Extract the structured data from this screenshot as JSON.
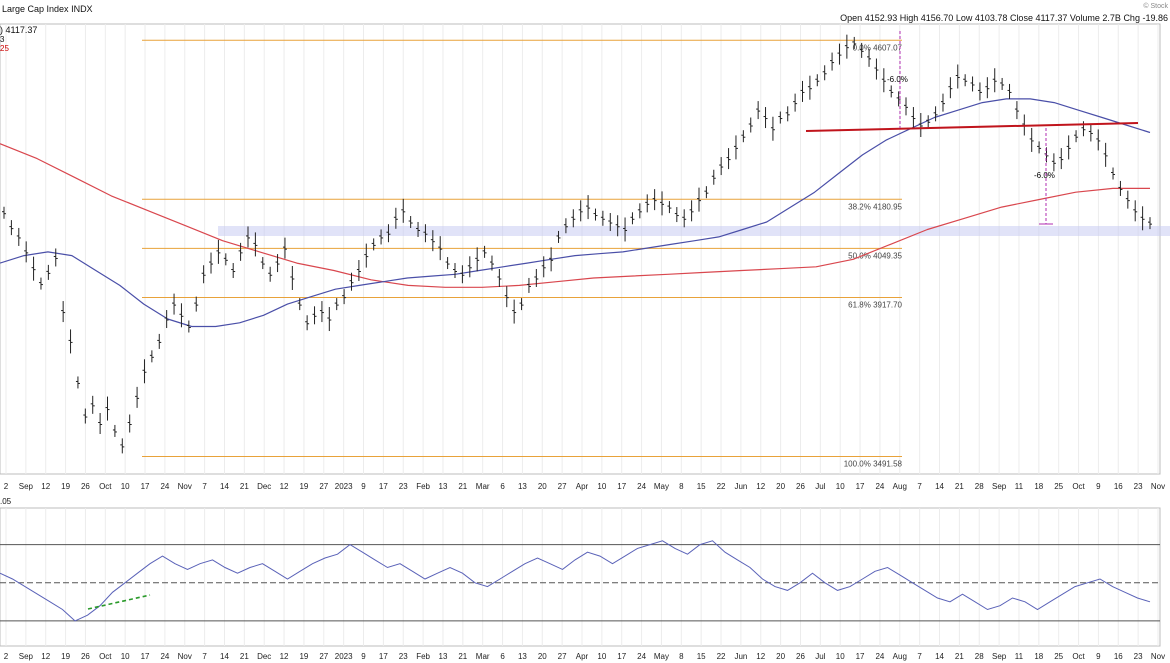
{
  "header": {
    "title": "Large Cap Index",
    "exchange": "INDX",
    "last_value": ") 4117.37",
    "legend_small_1": "3",
    "legend_small_2": "25",
    "watermark": "© Stock",
    "ohlc": {
      "open_label": "Open",
      "open": "4152.93",
      "high_label": "High",
      "high": "4156.70",
      "low_label": "Low",
      "low": "4103.78",
      "close_label": "Close",
      "close": "4117.37",
      "volume_label": "Volume",
      "volume": "2.7B",
      "chg_label": "Chg",
      "chg": "-19.86"
    }
  },
  "indicator": {
    "label": ".05"
  },
  "chart_data": {
    "type": "line",
    "ylim": [
      3450,
      4640
    ],
    "fib_levels": [
      {
        "label": "0.0% 4607.07",
        "value": 4607.07
      },
      {
        "label": "38.2% 4180.95",
        "value": 4180.95
      },
      {
        "label": "50.0% 4049.35",
        "value": 4049.35
      },
      {
        "label": "61.8% 3917.70",
        "value": 3917.7
      },
      {
        "label": "100.0% 3491.58",
        "value": 3491.58
      }
    ],
    "annotations": [
      {
        "label": "-6.0%",
        "from": 4607,
        "to": 4330
      },
      {
        "label": "-6.0%",
        "from": 4330,
        "to": 4050
      }
    ],
    "xaxis_ticks": [
      "2",
      "Sep",
      "12",
      "19",
      "26",
      "Oct",
      "10",
      "17",
      "24",
      "Nov",
      "7",
      "14",
      "21",
      "Dec",
      "12",
      "19",
      "27",
      "2023",
      "9",
      "17",
      "23",
      "Feb",
      "13",
      "21",
      "Mar",
      "6",
      "13",
      "20",
      "27",
      "Apr",
      "10",
      "17",
      "24",
      "May",
      "8",
      "15",
      "22",
      "Jun",
      "12",
      "20",
      "26",
      "Jul",
      "10",
      "17",
      "24",
      "Aug",
      "7",
      "14",
      "21",
      "28",
      "Sep",
      "11",
      "18",
      "25",
      "Oct",
      "9",
      "16",
      "23",
      "Nov"
    ],
    "price_series": [
      {
        "name": "",
        "values": [
          4145,
          4105,
          4080,
          4040,
          3995,
          3955,
          3985,
          4025,
          3880,
          3800,
          3690,
          3600,
          3630,
          3580,
          3620,
          3560,
          3520,
          3580,
          3650,
          3720,
          3760,
          3800,
          3860,
          3900,
          3870,
          3840,
          3900,
          3980,
          4010,
          4040,
          4020,
          3990,
          4040,
          4080,
          4060,
          4010,
          3980,
          4010,
          4050,
          3970,
          3900,
          3850,
          3870,
          3880,
          3860,
          3900,
          3920,
          3960,
          3990,
          4030,
          4060,
          4080,
          4090,
          4130,
          4150,
          4120,
          4100,
          4090,
          4070,
          4050,
          4010,
          3990,
          3980,
          4000,
          4020,
          4040,
          4010,
          3970,
          3920,
          3880,
          3900,
          3950,
          3970,
          4000,
          4020,
          4080,
          4110,
          4130,
          4150,
          4160,
          4140,
          4130,
          4120,
          4110,
          4100,
          4130,
          4150,
          4170,
          4180,
          4170,
          4160,
          4140,
          4130,
          4150,
          4180,
          4200,
          4240,
          4270,
          4290,
          4320,
          4350,
          4380,
          4420,
          4400,
          4370,
          4400,
          4410,
          4440,
          4470,
          4480,
          4500,
          4520,
          4550,
          4570,
          4590,
          4600,
          4580,
          4560,
          4530,
          4500,
          4470,
          4450,
          4430,
          4400,
          4380,
          4390,
          4410,
          4440,
          4480,
          4510,
          4500,
          4490,
          4470,
          4480,
          4500,
          4490,
          4470,
          4420,
          4380,
          4340,
          4320,
          4300,
          4280,
          4290,
          4320,
          4350,
          4370,
          4360,
          4340,
          4300,
          4250,
          4210,
          4180,
          4150,
          4130,
          4117
        ]
      },
      {
        "name": "",
        "values": [
          4010,
          4030,
          4040,
          4030,
          3990,
          3950,
          3900,
          3860,
          3840,
          3840,
          3850,
          3870,
          3900,
          3920,
          3940,
          3950,
          3960,
          3970,
          3975,
          3980,
          3990,
          4000,
          4010,
          4020,
          4030,
          4035,
          4040,
          4050,
          4060,
          4070,
          4080,
          4100,
          4120,
          4160,
          4200,
          4250,
          4300,
          4340,
          4370,
          4400,
          4420,
          4440,
          4450,
          4450,
          4440,
          4420,
          4400,
          4380,
          4360
        ]
      },
      {
        "name": "",
        "values": [
          4330,
          4290,
          4240,
          4190,
          4150,
          4110,
          4070,
          4040,
          4010,
          3990,
          3965,
          3950,
          3945,
          3945,
          3950,
          3960,
          3970,
          3975,
          3980,
          3985,
          3990,
          3995,
          4000,
          4020,
          4060,
          4100,
          4130,
          4160,
          4180,
          4200,
          4210,
          4210
        ]
      }
    ],
    "rsi_series": {
      "name": "",
      "values": [
        55,
        52,
        48,
        44,
        40,
        36,
        30,
        33,
        38,
        45,
        50,
        55,
        60,
        64,
        60,
        57,
        60,
        62,
        58,
        55,
        58,
        60,
        56,
        52,
        56,
        60,
        63,
        65,
        70,
        66,
        62,
        58,
        60,
        56,
        52,
        55,
        58,
        55,
        50,
        48,
        52,
        56,
        60,
        63,
        60,
        57,
        62,
        66,
        64,
        60,
        64,
        68,
        70,
        72,
        68,
        65,
        70,
        72,
        66,
        62,
        58,
        52,
        48,
        46,
        50,
        55,
        50,
        46,
        48,
        52,
        56,
        58,
        54,
        50,
        46,
        42,
        40,
        44,
        40,
        36,
        38,
        42,
        40,
        36,
        40,
        44,
        48,
        50,
        52,
        48,
        45,
        42,
        40
      ]
    }
  }
}
